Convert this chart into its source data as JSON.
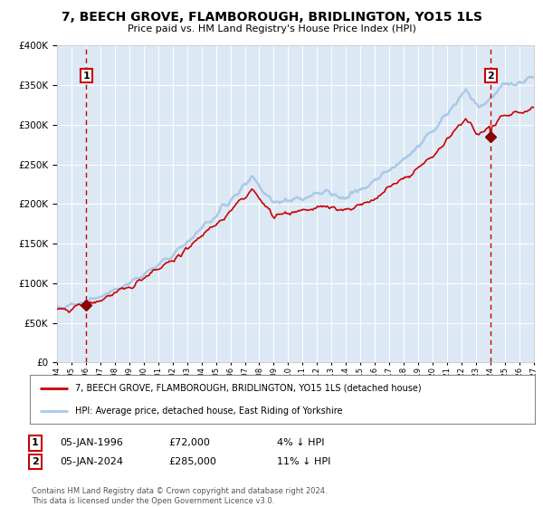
{
  "title": "7, BEECH GROVE, FLAMBOROUGH, BRIDLINGTON, YO15 1LS",
  "subtitle": "Price paid vs. HM Land Registry's House Price Index (HPI)",
  "legend_line1": "7, BEECH GROVE, FLAMBOROUGH, BRIDLINGTON, YO15 1LS (detached house)",
  "legend_line2": "HPI: Average price, detached house, East Riding of Yorkshire",
  "sale1_label": "1",
  "sale1_date": "05-JAN-1996",
  "sale1_price": "£72,000",
  "sale1_hpi": "4% ↓ HPI",
  "sale2_label": "2",
  "sale2_date": "05-JAN-2024",
  "sale2_price": "£285,000",
  "sale2_hpi": "11% ↓ HPI",
  "copyright": "Contains HM Land Registry data © Crown copyright and database right 2024.\nThis data is licensed under the Open Government Licence v3.0.",
  "hpi_line_color": "#aac8e8",
  "price_line_color": "#cc0000",
  "marker_color": "#8b0000",
  "dashed_line_color": "#cc0000",
  "plot_bg_color": "#dce9f5",
  "fig_bg_color": "#ffffff",
  "grid_color": "#ffffff",
  "ylim": [
    0,
    400000
  ],
  "yticks": [
    0,
    50000,
    100000,
    150000,
    200000,
    250000,
    300000,
    350000,
    400000
  ],
  "sale1_year": 1996.03,
  "sale1_price_val": 72000,
  "sale2_year": 2024.03,
  "sale2_price_val": 285000,
  "xstart": 1994,
  "xend": 2027
}
